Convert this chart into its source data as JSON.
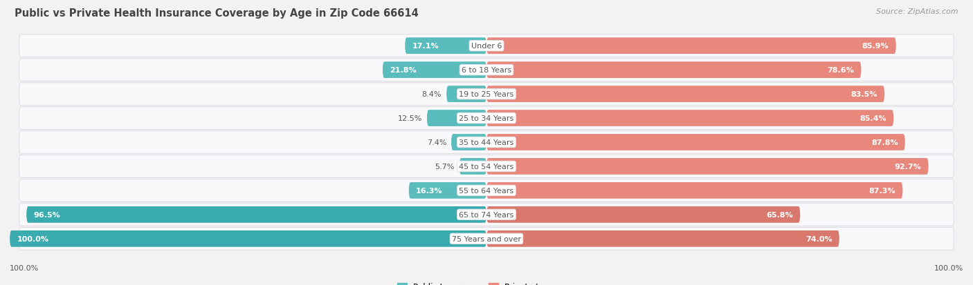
{
  "title": "Public vs Private Health Insurance Coverage by Age in Zip Code 66614",
  "source": "Source: ZipAtlas.com",
  "categories": [
    "Under 6",
    "6 to 18 Years",
    "19 to 25 Years",
    "25 to 34 Years",
    "35 to 44 Years",
    "45 to 54 Years",
    "55 to 64 Years",
    "65 to 74 Years",
    "75 Years and over"
  ],
  "public_values": [
    17.1,
    21.8,
    8.4,
    12.5,
    7.4,
    5.7,
    16.3,
    96.5,
    100.0
  ],
  "private_values": [
    85.9,
    78.6,
    83.5,
    85.4,
    87.8,
    92.7,
    87.3,
    65.8,
    74.0
  ],
  "public_color_normal": "#5bbcbe",
  "public_color_strong": "#3aacaf",
  "private_color_normal": "#e8877c",
  "private_color_strong": "#d9796d",
  "bg_color": "#f2f2f2",
  "row_bg_white": "#f9f9fb",
  "row_border": "#e0e0e6",
  "title_color": "#444444",
  "source_color": "#999999",
  "label_dark": "#555555",
  "label_white": "#ffffff",
  "bar_height": 0.68,
  "title_fontsize": 10.5,
  "source_fontsize": 8,
  "label_fontsize": 8,
  "category_fontsize": 8,
  "legend_fontsize": 8.5,
  "strong_indices": [
    7,
    8
  ]
}
